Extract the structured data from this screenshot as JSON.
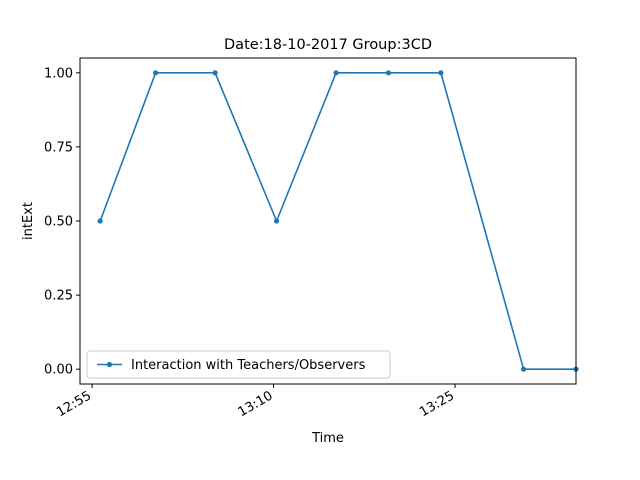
{
  "chart_data": {
    "type": "line",
    "title": "Date:18-10-2017  Group:3CD",
    "xlabel": "Time",
    "ylabel": "intExt",
    "x_ticks": [
      "12:55",
      "13:10",
      "13:25"
    ],
    "y_ticks": [
      "0.00",
      "0.25",
      "0.50",
      "0.75",
      "1.00"
    ],
    "ylim": [
      -0.05,
      1.05
    ],
    "xlim": [
      "12:54",
      "13:35"
    ],
    "grid": false,
    "legend_position": "lower-left",
    "series": [
      {
        "name": "Interaction with Teachers/Observers",
        "color": "#1f77b4",
        "marker": "dot",
        "points": [
          {
            "x": "12:55:40",
            "y": 0.5
          },
          {
            "x": "13:00:15",
            "y": 1.0
          },
          {
            "x": "13:05:10",
            "y": 1.0
          },
          {
            "x": "13:10:15",
            "y": 0.5
          },
          {
            "x": "13:15:10",
            "y": 1.0
          },
          {
            "x": "13:19:30",
            "y": 1.0
          },
          {
            "x": "13:23:50",
            "y": 1.0
          },
          {
            "x": "13:30:40",
            "y": 0.0
          },
          {
            "x": "13:35:00",
            "y": 0.0
          }
        ]
      }
    ]
  }
}
